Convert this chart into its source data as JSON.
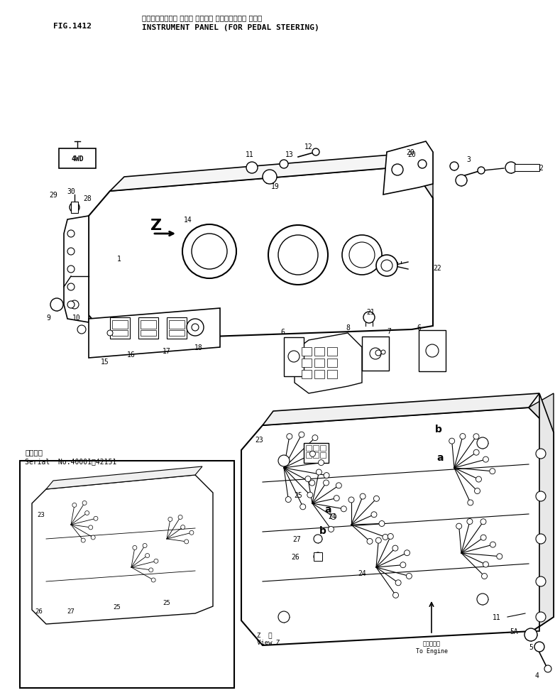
{
  "title_japanese": "インスツルメント パネル （ペダル ステアリング・ ヨウ）",
  "title_english": "INSTRUMENT PANEL (FOR PEDAL STEERING)",
  "fig_label": "FIG.1412",
  "serial_japanese": "適用号機",
  "serial_english": "Serial  No.40001～42151",
  "view_z_line1": "Z  機",
  "view_z_line2": "View Z",
  "engine_jp": "エンジンへ",
  "engine_en": "To Engine",
  "bg_color": "#ffffff",
  "lc": "#000000"
}
